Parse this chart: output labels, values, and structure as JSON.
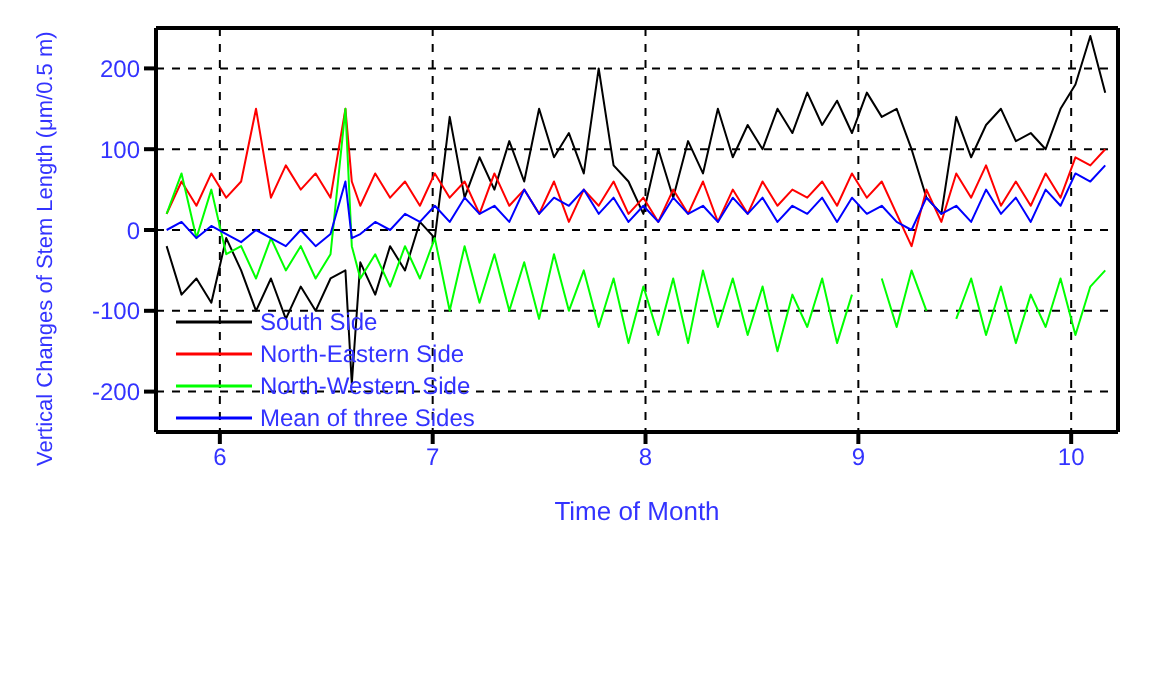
{
  "chart_data": {
    "type": "line",
    "xlabel": "Time of Month",
    "ylabel": "Vertical Changes of Stem Length (μm/0.5 m)",
    "x": [
      5.75,
      5.82,
      5.89,
      5.96,
      6.03,
      6.1,
      6.17,
      6.24,
      6.31,
      6.38,
      6.45,
      6.52,
      6.59,
      6.62,
      6.66,
      6.73,
      6.8,
      6.87,
      6.94,
      7.01,
      7.08,
      7.15,
      7.22,
      7.29,
      7.36,
      7.43,
      7.5,
      7.57,
      7.64,
      7.71,
      7.78,
      7.85,
      7.92,
      7.99,
      8.06,
      8.13,
      8.2,
      8.27,
      8.34,
      8.41,
      8.48,
      8.55,
      8.62,
      8.69,
      8.76,
      8.83,
      8.9,
      8.97,
      9.04,
      9.11,
      9.18,
      9.25,
      9.32,
      9.39,
      9.46,
      9.53,
      9.6,
      9.67,
      9.74,
      9.81,
      9.88,
      9.95,
      10.02,
      10.09,
      10.16
    ],
    "series": [
      {
        "name": "South Side",
        "color": "#000000",
        "values": [
          -20,
          -80,
          -60,
          -90,
          -10,
          -50,
          -100,
          -60,
          -110,
          -70,
          -100,
          -60,
          -50,
          -190,
          -40,
          -80,
          -20,
          -50,
          10,
          -10,
          140,
          40,
          90,
          50,
          110,
          60,
          150,
          90,
          120,
          70,
          200,
          80,
          60,
          20,
          100,
          40,
          110,
          70,
          150,
          90,
          130,
          100,
          150,
          120,
          170,
          130,
          160,
          120,
          170,
          140,
          150,
          100,
          40,
          20,
          140,
          90,
          130,
          150,
          110,
          120,
          100,
          150,
          180,
          240,
          170
        ]
      },
      {
        "name": "North-Eastern Side",
        "color": "#ff0000",
        "values": [
          20,
          60,
          30,
          70,
          40,
          60,
          150,
          40,
          80,
          50,
          70,
          40,
          150,
          60,
          30,
          70,
          40,
          60,
          30,
          70,
          40,
          60,
          20,
          70,
          30,
          50,
          20,
          60,
          10,
          50,
          30,
          60,
          20,
          40,
          10,
          50,
          20,
          60,
          10,
          50,
          20,
          60,
          30,
          50,
          40,
          60,
          30,
          70,
          40,
          60,
          20,
          -20,
          50,
          10,
          70,
          40,
          80,
          30,
          60,
          30,
          70,
          40,
          90,
          80,
          100
        ]
      },
      {
        "name": "North-Western Side",
        "color": "#00ff00",
        "values": [
          20,
          70,
          -10,
          50,
          -30,
          -20,
          -60,
          -10,
          -50,
          -20,
          -60,
          -30,
          150,
          -20,
          -60,
          -30,
          -70,
          -20,
          -60,
          -10,
          -100,
          -20,
          -90,
          -30,
          -100,
          -40,
          -110,
          -30,
          -100,
          -50,
          -120,
          -60,
          -140,
          -70,
          -130,
          -60,
          -140,
          -50,
          -120,
          -60,
          -130,
          -70,
          -150,
          -80,
          -120,
          -60,
          -140,
          -80,
          null,
          -60,
          -120,
          -50,
          -100,
          null,
          -110,
          -60,
          -130,
          -70,
          -140,
          -80,
          -120,
          -60,
          -130,
          -70,
          -50
        ]
      },
      {
        "name": "Mean of three Sides",
        "color": "#0000ff",
        "values": [
          0,
          10,
          -10,
          5,
          -5,
          -15,
          0,
          -10,
          -20,
          0,
          -20,
          -5,
          60,
          -10,
          -5,
          10,
          0,
          20,
          10,
          30,
          10,
          40,
          20,
          30,
          10,
          50,
          20,
          40,
          30,
          50,
          20,
          40,
          10,
          30,
          10,
          40,
          20,
          30,
          10,
          40,
          20,
          40,
          10,
          30,
          20,
          40,
          10,
          40,
          20,
          30,
          10,
          0,
          40,
          20,
          30,
          10,
          50,
          20,
          40,
          10,
          50,
          30,
          70,
          60,
          80
        ]
      }
    ],
    "xlim": [
      5.7,
      10.22
    ],
    "xticks": [
      6,
      7,
      8,
      9,
      10
    ],
    "ylim": [
      -250,
      250
    ],
    "yticks": [
      -200,
      -100,
      0,
      100,
      200
    ],
    "grid": true,
    "legend": "bottom left",
    "line_style": "solid",
    "marker": "none"
  }
}
